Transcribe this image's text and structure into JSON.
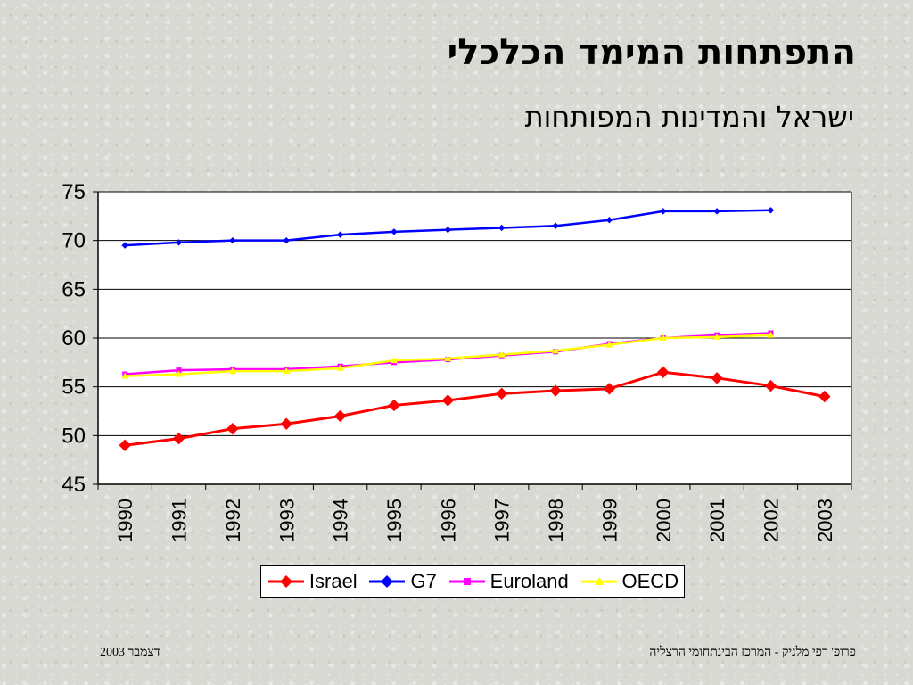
{
  "title": "התפתחות המימד הכלכלי",
  "subtitle": "ישראל והמדינות המפותחות",
  "footer": {
    "left": "דצמבר  2003",
    "right": "פרופ' רפי מלניק - המרכז הבינתחומי הרצליה"
  },
  "chart_data": {
    "type": "line",
    "categories": [
      "1990",
      "1991",
      "1992",
      "1993",
      "1994",
      "1995",
      "1996",
      "1997",
      "1998",
      "1999",
      "2000",
      "2001",
      "2002",
      "2003"
    ],
    "ylim": [
      45,
      75
    ],
    "yticks": [
      45,
      50,
      55,
      60,
      65,
      70,
      75
    ],
    "grid": true,
    "legend_position": "bottom",
    "series": [
      {
        "name": "Israel",
        "color": "#ff0000",
        "marker": "diamond",
        "values": [
          49.0,
          49.7,
          50.7,
          51.2,
          52.0,
          53.1,
          53.6,
          54.3,
          54.6,
          54.8,
          56.5,
          55.9,
          55.1,
          54.0
        ]
      },
      {
        "name": "G7",
        "color": "#0000ff",
        "marker": "diamond",
        "values": [
          69.5,
          69.8,
          70.0,
          70.0,
          70.6,
          70.9,
          71.1,
          71.3,
          71.5,
          72.1,
          73.0,
          73.0,
          73.1,
          null
        ]
      },
      {
        "name": "Euroland",
        "color": "#ff00ff",
        "marker": "square",
        "values": [
          56.3,
          56.7,
          56.8,
          56.8,
          57.1,
          57.5,
          57.8,
          58.2,
          58.6,
          59.4,
          60.0,
          60.3,
          60.5,
          null
        ]
      },
      {
        "name": "OECD",
        "color": "#ffff00",
        "marker": "triangle",
        "values": [
          56.1,
          56.3,
          56.6,
          56.6,
          56.9,
          57.7,
          57.9,
          58.3,
          58.7,
          59.3,
          60.0,
          60.1,
          60.3,
          null
        ]
      }
    ]
  }
}
